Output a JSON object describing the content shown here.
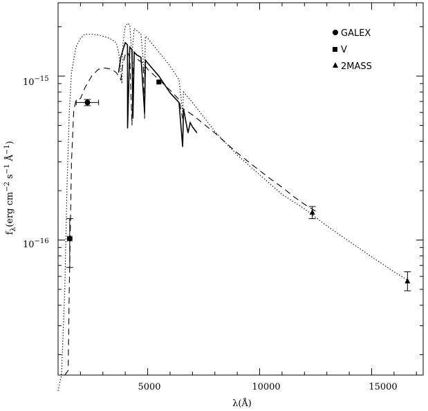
{
  "chart_data": {
    "type": "line",
    "xlabel": "λ(Å)",
    "ylabel": "f_λ(erg cm^-2 s^-1 Å^-1)",
    "x_ticks": [
      "5000",
      "10000",
      "15000"
    ],
    "y_ticks": [
      "10^-16",
      "10^-15"
    ],
    "xlim": [
      1000,
      17300
    ],
    "ylim": [
      1.5e-17,
      2.8e-15
    ],
    "yscale": "log",
    "legend": [
      "GALEX",
      "V",
      "2MASS"
    ],
    "legend_placement": "top-right",
    "series": [
      {
        "style": "dotted",
        "x": [
          1000,
          1150,
          1300,
          1400,
          1500,
          1600,
          1800,
          2000,
          2200,
          2500,
          2800,
          3000,
          3300,
          3600,
          3700,
          3800,
          3850,
          3900,
          4000,
          4100,
          4200,
          4300,
          4340,
          4400,
          4500,
          4700,
          4861,
          4900,
          5000,
          5500,
          6000,
          6400,
          6563,
          6600,
          7000,
          8000,
          9000,
          10000,
          11000,
          12000,
          13000,
          14000,
          15000,
          16000,
          16600
        ],
        "y": [
          1.2e-17,
          1.5e-17,
          5e-17,
          2.2e-16,
          6e-16,
          1.05e-15,
          1.5e-15,
          1.7e-15,
          1.8e-15,
          1.8e-15,
          1.78e-15,
          1.75e-15,
          1.7e-15,
          1.6e-15,
          1.4e-15,
          1.1e-15,
          9e-16,
          1.6e-15,
          2e-15,
          2.1e-15,
          2.05e-15,
          1.3e-15,
          1.6e-15,
          1.95e-15,
          1.9e-15,
          1.8e-15,
          1e-15,
          1.75e-15,
          1.7e-15,
          1.4e-15,
          1.15e-15,
          9.5e-16,
          6e-16,
          8e-16,
          6.9e-16,
          4.6e-16,
          3.3e-16,
          2.5e-16,
          1.9e-16,
          1.55e-16,
          1.22e-16,
          9.8e-17,
          7.9e-17,
          6.4e-17,
          5.7e-17
        ]
      },
      {
        "style": "dashed",
        "x": [
          1300,
          1450,
          1500,
          1600,
          1700,
          1800,
          2000,
          2200,
          2500,
          2800,
          3100,
          3400,
          3600,
          3700,
          3800,
          3900,
          4000,
          4100,
          4200,
          4300,
          4340,
          4400,
          4600,
          4800,
          4861,
          4900,
          5000,
          5500,
          6000,
          6400,
          6563,
          6600,
          7000,
          8000,
          8500,
          9000,
          9500,
          10000,
          10500,
          11000,
          11500,
          12000,
          12500
        ],
        "y": [
          1.5e-17,
          1.6e-17,
          5e-17,
          3e-16,
          6.2e-16,
          7.1e-16,
          7.3e-16,
          8.5e-16,
          1e-15,
          1.1e-15,
          1.12e-15,
          1.1e-15,
          1.05e-15,
          1e-15,
          9.5e-16,
          1.2e-15,
          1.35e-15,
          1.4e-15,
          1.3e-15,
          5e-16,
          1.1e-15,
          1.3e-15,
          1.25e-15,
          1.2e-15,
          5.5e-16,
          1.15e-15,
          1.1e-15,
          9.5e-16,
          8.2e-16,
          7.2e-16,
          5.5e-16,
          6.3e-16,
          5.8e-16,
          4.5e-16,
          3.9e-16,
          3.4e-16,
          3e-16,
          2.65e-16,
          2.35e-16,
          2.1e-16,
          1.85e-16,
          1.65e-16,
          1.5e-16
        ]
      },
      {
        "style": "solid",
        "x": [
          3700,
          3800,
          3900,
          4000,
          4100,
          4102,
          4200,
          4300,
          4340,
          4400,
          4500,
          4700,
          4861,
          4900,
          5000,
          5500,
          6000,
          6400,
          6563,
          6600,
          6800,
          6900,
          7000,
          7100,
          7200
        ],
        "y": [
          1.05e-15,
          1.3e-15,
          1.45e-15,
          1.6e-15,
          1.55e-15,
          4.8e-16,
          1.5e-15,
          1.45e-15,
          5.5e-16,
          1.4e-15,
          1.35e-15,
          1.3e-15,
          6e-16,
          1.25e-15,
          1.2e-15,
          1e-15,
          7.9e-16,
          6.9e-16,
          3.7e-16,
          6.3e-16,
          4.5e-16,
          5.2e-16,
          4.9e-16,
          4.7e-16,
          4.5e-16
        ]
      }
    ],
    "points": [
      {
        "name": "GALEX",
        "marker": "circle",
        "x": 1520,
        "y": 1.02e-16,
        "xerr": 100,
        "yerr": [
          6.8e-17,
          1.35e-16
        ]
      },
      {
        "name": "GALEX",
        "marker": "circle",
        "x": 2310,
        "y": 6.9e-16,
        "xerr": 500,
        "yerr": [
          6.6e-16,
          7.2e-16
        ]
      },
      {
        "name": "V",
        "marker": "square",
        "x": 5500,
        "y": 9.2e-16,
        "xerr": 0,
        "yerr": [
          9.2e-16,
          9.2e-16
        ]
      },
      {
        "name": "2MASS",
        "marker": "triangle",
        "x": 12350,
        "y": 1.47e-16,
        "xerr": 0,
        "yerr": [
          1.35e-16,
          1.6e-16
        ]
      },
      {
        "name": "2MASS",
        "marker": "triangle",
        "x": 16600,
        "y": 5.6e-17,
        "xerr": 0,
        "yerr": [
          4.9e-17,
          6.4e-17
        ]
      }
    ]
  }
}
